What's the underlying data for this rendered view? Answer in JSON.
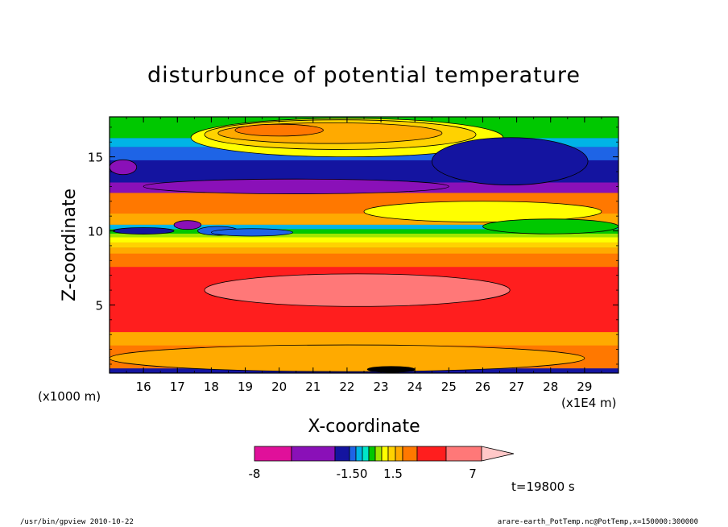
{
  "chart_data": {
    "type": "heatmap",
    "title": "disturbunce of potential temperature",
    "xlabel": "X-coordinate",
    "ylabel": "Z-coordinate",
    "x_unit_left": "(x1000 m)",
    "x_unit_right": "(x1E4 m)",
    "xlim": [
      15.0,
      30.0
    ],
    "ylim": [
      0.4,
      17.7
    ],
    "x_ticks": [
      "16",
      "17",
      "18",
      "19",
      "20",
      "21",
      "22",
      "23",
      "24",
      "25",
      "26",
      "27",
      "28",
      "29"
    ],
    "y_ticks": [
      "5",
      "10",
      "15"
    ],
    "time_label": "t=19800 s",
    "colorbar": {
      "labels": [
        "-8",
        "-1.50",
        "1.5",
        "7"
      ],
      "colors": [
        "#e0109a",
        "#8a10b8",
        "#1414a0",
        "#1e64e6",
        "#00b4e6",
        "#00e6c8",
        "#00c800",
        "#a0e600",
        "#ffff00",
        "#ffd200",
        "#ffaa00",
        "#ff7800",
        "#ff1e1e",
        "#ff7878",
        "#ffc8c8"
      ]
    },
    "bands": [
      {
        "z0": 0.4,
        "z1": 0.75,
        "color": "#1414a0"
      },
      {
        "z0": 0.75,
        "z1": 2.3,
        "color": "#ff7800"
      },
      {
        "z0": 2.3,
        "z1": 3.2,
        "color": "#ffaa00"
      },
      {
        "z0": 3.2,
        "z1": 7.6,
        "color": "#ff1e1e"
      },
      {
        "z0": 7.6,
        "z1": 8.5,
        "color": "#ff7800"
      },
      {
        "z0": 8.5,
        "z1": 8.9,
        "color": "#ffaa00"
      },
      {
        "z0": 8.9,
        "z1": 9.25,
        "color": "#ffd200"
      },
      {
        "z0": 9.25,
        "z1": 9.6,
        "color": "#ffff00"
      },
      {
        "z0": 9.6,
        "z1": 9.85,
        "color": "#a0e600"
      },
      {
        "z0": 9.85,
        "z1": 10.15,
        "color": "#00c800"
      },
      {
        "z0": 10.15,
        "z1": 10.45,
        "color": "#00b4e6"
      },
      {
        "z0": 10.45,
        "z1": 11.2,
        "color": "#ffaa00"
      },
      {
        "z0": 11.2,
        "z1": 12.6,
        "color": "#ff7800"
      },
      {
        "z0": 12.6,
        "z1": 13.3,
        "color": "#8a10b8"
      },
      {
        "z0": 13.3,
        "z1": 14.8,
        "color": "#1414a0"
      },
      {
        "z0": 14.8,
        "z1": 15.7,
        "color": "#1e64e6"
      },
      {
        "z0": 15.7,
        "z1": 16.3,
        "color": "#00b4e6"
      },
      {
        "z0": 16.3,
        "z1": 17.7,
        "color": "#00c800"
      }
    ],
    "features": [
      {
        "x": 22.3,
        "z": 6.0,
        "rx": 4.5,
        "rz": 1.1,
        "color": "#ff7878"
      },
      {
        "x": 22.0,
        "z": 1.4,
        "rx": 7.0,
        "rz": 0.9,
        "color": "#ffaa00"
      },
      {
        "x": 22.0,
        "z": 16.3,
        "rx": 4.6,
        "rz": 1.3,
        "color": "#ffff00"
      },
      {
        "x": 21.8,
        "z": 16.5,
        "rx": 4.0,
        "rz": 1.0,
        "color": "#ffd200"
      },
      {
        "x": 21.5,
        "z": 16.6,
        "rx": 3.3,
        "rz": 0.7,
        "color": "#ffaa00"
      },
      {
        "x": 20.0,
        "z": 16.8,
        "rx": 1.3,
        "rz": 0.4,
        "color": "#ff7800"
      },
      {
        "x": 26.8,
        "z": 14.7,
        "rx": 2.3,
        "rz": 1.6,
        "color": "#1414a0"
      },
      {
        "x": 26.0,
        "z": 11.3,
        "rx": 3.5,
        "rz": 0.7,
        "color": "#ffff00"
      },
      {
        "x": 28.0,
        "z": 10.3,
        "rx": 2.0,
        "rz": 0.5,
        "color": "#00c800"
      },
      {
        "x": 20.5,
        "z": 13.0,
        "rx": 4.5,
        "rz": 0.5,
        "color": "#8a10b8"
      },
      {
        "x": 15.4,
        "z": 14.3,
        "rx": 0.4,
        "rz": 0.5,
        "color": "#8a10b8"
      },
      {
        "x": 18.2,
        "z": 10.0,
        "rx": 0.6,
        "rz": 0.3,
        "color": "#1e64e6"
      },
      {
        "x": 19.2,
        "z": 9.9,
        "rx": 1.2,
        "rz": 0.25,
        "color": "#1e64e6"
      },
      {
        "x": 16.0,
        "z": 10.0,
        "rx": 0.9,
        "rz": 0.22,
        "color": "#1414a0"
      },
      {
        "x": 17.3,
        "z": 10.4,
        "rx": 0.4,
        "rz": 0.3,
        "color": "#8a10b8"
      },
      {
        "x": 23.3,
        "z": 0.65,
        "rx": 0.7,
        "rz": 0.2,
        "color": "#000000"
      }
    ]
  },
  "footer": {
    "left": "/usr/bin/gpview   2010-10-22",
    "right": "arare-earth_PotTemp.nc@PotTemp,x=150000:300000"
  }
}
